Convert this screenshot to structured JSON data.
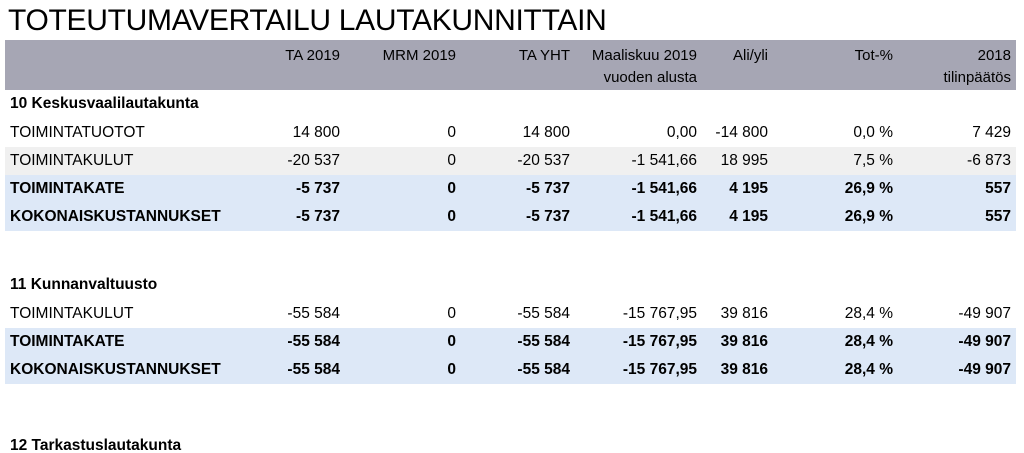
{
  "title": "TOTEUTUMAVERTAILU LAUTAKUNNITTAIN",
  "columns": [
    {
      "key": "ta2019",
      "line1": "TA 2019",
      "line2": ""
    },
    {
      "key": "mrm2019",
      "line1": "MRM 2019",
      "line2": ""
    },
    {
      "key": "tayht",
      "line1": "TA YHT",
      "line2": ""
    },
    {
      "key": "maaliskuu",
      "line1": "Maaliskuu 2019",
      "line2": "vuoden alusta"
    },
    {
      "key": "aliyli",
      "line1": "Ali/yli",
      "line2": ""
    },
    {
      "key": "totpct",
      "line1": "Tot-%",
      "line2": ""
    },
    {
      "key": "tp2018",
      "line1": "2018",
      "line2": "tilinpäätös"
    }
  ],
  "sections": [
    {
      "heading": "10 Keskusvaalilautakunta",
      "rows": [
        {
          "label": "TOIMINTATUOTOT",
          "kind": "normal",
          "values": [
            "14 800",
            "0",
            "14 800",
            "0,00",
            "-14 800",
            "0,0 %",
            "7 429"
          ]
        },
        {
          "label": "TOIMINTAKULUT",
          "kind": "shade",
          "values": [
            "-20 537",
            "0",
            "-20 537",
            "-1 541,66",
            "18 995",
            "7,5 %",
            "-6 873"
          ]
        },
        {
          "label": "TOIMINTAKATE",
          "kind": "total",
          "values": [
            "-5 737",
            "0",
            "-5 737",
            "-1 541,66",
            "4 195",
            "26,9 %",
            "557"
          ]
        },
        {
          "label": "KOKONAISKUSTANNUKSET",
          "kind": "total",
          "values": [
            "-5 737",
            "0",
            "-5 737",
            "-1 541,66",
            "4 195",
            "26,9 %",
            "557"
          ]
        }
      ]
    },
    {
      "heading": "11 Kunnanvaltuusto",
      "rows": [
        {
          "label": "TOIMINTAKULUT",
          "kind": "normal",
          "values": [
            "-55 584",
            "0",
            "-55 584",
            "-15 767,95",
            "39 816",
            "28,4 %",
            "-49 907"
          ]
        },
        {
          "label": "TOIMINTAKATE",
          "kind": "total",
          "values": [
            "-55 584",
            "0",
            "-55 584",
            "-15 767,95",
            "39 816",
            "28,4 %",
            "-49 907"
          ]
        },
        {
          "label": "KOKONAISKUSTANNUKSET",
          "kind": "total",
          "values": [
            "-55 584",
            "0",
            "-55 584",
            "-15 767,95",
            "39 816",
            "28,4 %",
            "-49 907"
          ]
        }
      ]
    },
    {
      "heading": "12 Tarkastuslautakunta",
      "rows": []
    }
  ]
}
